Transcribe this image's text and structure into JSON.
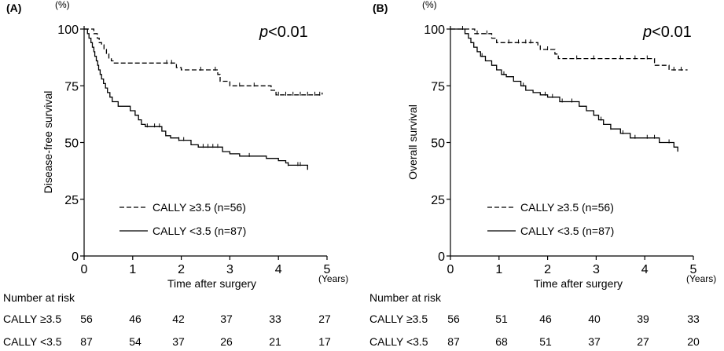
{
  "chart_data": [
    {
      "type": "line",
      "panel_label": "(A)",
      "ylabel": "Disease-free survival",
      "y_unit": "(%)",
      "xlabel": "Time after surgery",
      "x_unit": "(Years)",
      "xlim": [
        0,
        5
      ],
      "ylim": [
        0,
        100
      ],
      "x_ticks": [
        "0",
        "1",
        "2",
        "3",
        "4",
        "5"
      ],
      "y_ticks": [
        "0",
        "25",
        "50",
        "75",
        "100"
      ],
      "annotation_prefix": "p",
      "annotation_rest": "<0.01",
      "series": [
        {
          "name": "CALLY ≥3.5 (n=56)",
          "style": "dashed",
          "points": [
            [
              0,
              100
            ],
            [
              0.2,
              100
            ],
            [
              0.2,
              98
            ],
            [
              0.27,
              98
            ],
            [
              0.27,
              96
            ],
            [
              0.31,
              96
            ],
            [
              0.31,
              94
            ],
            [
              0.36,
              94
            ],
            [
              0.36,
              93
            ],
            [
              0.41,
              93
            ],
            [
              0.41,
              91
            ],
            [
              0.46,
              91
            ],
            [
              0.46,
              89
            ],
            [
              0.51,
              89
            ],
            [
              0.51,
              87
            ],
            [
              0.56,
              87
            ],
            [
              0.56,
              86
            ],
            [
              0.61,
              86
            ],
            [
              0.61,
              85
            ],
            [
              1.9,
              85
            ],
            [
              1.9,
              83
            ],
            [
              2.0,
              83
            ],
            [
              2.0,
              82
            ],
            [
              2.75,
              82
            ],
            [
              2.75,
              80
            ],
            [
              2.8,
              80
            ],
            [
              2.8,
              77
            ],
            [
              3.0,
              77
            ],
            [
              3.0,
              75
            ],
            [
              3.85,
              75
            ],
            [
              3.85,
              73
            ],
            [
              3.95,
              73
            ],
            [
              3.95,
              71
            ],
            [
              4.9,
              71
            ],
            [
              4.9,
              72
            ]
          ],
          "censor_x": [
            1.7,
            1.8,
            2.4,
            2.7,
            3.2,
            3.5,
            4.0,
            4.15,
            4.3,
            4.45,
            4.6,
            4.75,
            4.85
          ]
        },
        {
          "name": "CALLY <3.5 (n=87)",
          "style": "solid",
          "points": [
            [
              0,
              100
            ],
            [
              0.07,
              100
            ],
            [
              0.07,
              98
            ],
            [
              0.1,
              98
            ],
            [
              0.1,
              96
            ],
            [
              0.14,
              96
            ],
            [
              0.14,
              94
            ],
            [
              0.17,
              94
            ],
            [
              0.17,
              92
            ],
            [
              0.2,
              92
            ],
            [
              0.2,
              90
            ],
            [
              0.22,
              90
            ],
            [
              0.22,
              88
            ],
            [
              0.25,
              88
            ],
            [
              0.25,
              86
            ],
            [
              0.28,
              86
            ],
            [
              0.28,
              84
            ],
            [
              0.3,
              84
            ],
            [
              0.3,
              82
            ],
            [
              0.33,
              82
            ],
            [
              0.33,
              80
            ],
            [
              0.36,
              80
            ],
            [
              0.36,
              78
            ],
            [
              0.4,
              78
            ],
            [
              0.4,
              76
            ],
            [
              0.44,
              76
            ],
            [
              0.44,
              74
            ],
            [
              0.48,
              74
            ],
            [
              0.48,
              72
            ],
            [
              0.53,
              72
            ],
            [
              0.53,
              70
            ],
            [
              0.58,
              70
            ],
            [
              0.58,
              68
            ],
            [
              0.7,
              68
            ],
            [
              0.7,
              66
            ],
            [
              0.95,
              66
            ],
            [
              0.95,
              64
            ],
            [
              1.05,
              64
            ],
            [
              1.05,
              62
            ],
            [
              1.12,
              62
            ],
            [
              1.12,
              60
            ],
            [
              1.18,
              60
            ],
            [
              1.18,
              58
            ],
            [
              1.26,
              58
            ],
            [
              1.26,
              57
            ],
            [
              1.6,
              57
            ],
            [
              1.6,
              55
            ],
            [
              1.68,
              55
            ],
            [
              1.68,
              53
            ],
            [
              1.78,
              53
            ],
            [
              1.78,
              52
            ],
            [
              1.95,
              52
            ],
            [
              1.95,
              51
            ],
            [
              2.2,
              51
            ],
            [
              2.2,
              49
            ],
            [
              2.35,
              49
            ],
            [
              2.35,
              48
            ],
            [
              2.85,
              48
            ],
            [
              2.85,
              46
            ],
            [
              3.0,
              46
            ],
            [
              3.0,
              45
            ],
            [
              3.2,
              45
            ],
            [
              3.2,
              44
            ],
            [
              3.75,
              44
            ],
            [
              3.75,
              43
            ],
            [
              4.0,
              43
            ],
            [
              4.0,
              42
            ],
            [
              4.15,
              42
            ],
            [
              4.15,
              41
            ],
            [
              4.2,
              41
            ],
            [
              4.2,
              40
            ],
            [
              4.6,
              40
            ],
            [
              4.6,
              38
            ]
          ],
          "censor_x": [
            1.3,
            1.45,
            1.55,
            1.95,
            2.05,
            2.45,
            2.55,
            2.65,
            2.75,
            3.4,
            4.2,
            4.4,
            4.45
          ]
        }
      ],
      "risk_table": {
        "title": "Number at risk",
        "rows": [
          {
            "label": "CALLY ≥3.5",
            "values": [
              "56",
              "46",
              "42",
              "37",
              "33",
              "27"
            ]
          },
          {
            "label": "CALLY <3.5",
            "values": [
              "87",
              "54",
              "37",
              "26",
              "21",
              "17"
            ]
          }
        ]
      }
    },
    {
      "type": "line",
      "panel_label": "(B)",
      "ylabel": "Overall survival",
      "y_unit": "(%)",
      "xlabel": "Time after surgery",
      "x_unit": "(Years)",
      "xlim": [
        0,
        5
      ],
      "ylim": [
        0,
        100
      ],
      "x_ticks": [
        "0",
        "1",
        "2",
        "3",
        "4",
        "5"
      ],
      "y_ticks": [
        "0",
        "25",
        "50",
        "75",
        "100"
      ],
      "annotation_prefix": "p",
      "annotation_rest": "<0.01",
      "series": [
        {
          "name": "CALLY ≥3.5 (n=56)",
          "style": "dashed",
          "points": [
            [
              0,
              100
            ],
            [
              0.5,
              100
            ],
            [
              0.5,
              98
            ],
            [
              0.85,
              98
            ],
            [
              0.85,
              96
            ],
            [
              0.95,
              96
            ],
            [
              0.95,
              94
            ],
            [
              1.8,
              94
            ],
            [
              1.8,
              93
            ],
            [
              1.85,
              93
            ],
            [
              1.85,
              91
            ],
            [
              2.15,
              91
            ],
            [
              2.15,
              89
            ],
            [
              2.22,
              89
            ],
            [
              2.22,
              87
            ],
            [
              4.2,
              87
            ],
            [
              4.2,
              84
            ],
            [
              4.5,
              84
            ],
            [
              4.5,
              82
            ],
            [
              4.88,
              82
            ]
          ],
          "censor_x": [
            0.25,
            0.55,
            0.75,
            1.2,
            1.4,
            1.55,
            1.65,
            2.0,
            2.6,
            2.95,
            3.5,
            3.8,
            4.05,
            4.6,
            4.75
          ]
        },
        {
          "name": "CALLY <3.5 (n=87)",
          "style": "solid",
          "points": [
            [
              0,
              100
            ],
            [
              0.3,
              100
            ],
            [
              0.3,
              98
            ],
            [
              0.37,
              98
            ],
            [
              0.37,
              96
            ],
            [
              0.42,
              96
            ],
            [
              0.42,
              94
            ],
            [
              0.48,
              94
            ],
            [
              0.48,
              92
            ],
            [
              0.55,
              92
            ],
            [
              0.55,
              90
            ],
            [
              0.62,
              90
            ],
            [
              0.62,
              88
            ],
            [
              0.72,
              88
            ],
            [
              0.72,
              86
            ],
            [
              0.85,
              86
            ],
            [
              0.85,
              84
            ],
            [
              0.95,
              84
            ],
            [
              0.95,
              82
            ],
            [
              1.05,
              82
            ],
            [
              1.05,
              80
            ],
            [
              1.15,
              80
            ],
            [
              1.15,
              79
            ],
            [
              1.3,
              79
            ],
            [
              1.3,
              77
            ],
            [
              1.45,
              77
            ],
            [
              1.45,
              75
            ],
            [
              1.55,
              75
            ],
            [
              1.55,
              73
            ],
            [
              1.7,
              73
            ],
            [
              1.7,
              72
            ],
            [
              1.85,
              72
            ],
            [
              1.85,
              71
            ],
            [
              2.0,
              71
            ],
            [
              2.0,
              70
            ],
            [
              2.25,
              70
            ],
            [
              2.25,
              68
            ],
            [
              2.65,
              68
            ],
            [
              2.65,
              66
            ],
            [
              2.8,
              66
            ],
            [
              2.8,
              64
            ],
            [
              2.95,
              64
            ],
            [
              2.95,
              62
            ],
            [
              3.05,
              62
            ],
            [
              3.05,
              60
            ],
            [
              3.15,
              60
            ],
            [
              3.15,
              58
            ],
            [
              3.3,
              58
            ],
            [
              3.3,
              56
            ],
            [
              3.5,
              56
            ],
            [
              3.5,
              54
            ],
            [
              3.7,
              54
            ],
            [
              3.7,
              52
            ],
            [
              4.3,
              52
            ],
            [
              4.3,
              50
            ],
            [
              4.6,
              50
            ],
            [
              4.6,
              48
            ],
            [
              4.68,
              48
            ],
            [
              4.68,
              46
            ]
          ],
          "censor_x": [
            0.65,
            1.1,
            1.5,
            1.95,
            2.1,
            2.3,
            2.5,
            3.1,
            3.3,
            3.55,
            3.8,
            4.05,
            4.2,
            4.5
          ]
        }
      ],
      "risk_table": {
        "title": "Number at risk",
        "rows": [
          {
            "label": "CALLY ≥3.5",
            "values": [
              "56",
              "51",
              "46",
              "40",
              "39",
              "33"
            ]
          },
          {
            "label": "CALLY <3.5",
            "values": [
              "87",
              "68",
              "51",
              "37",
              "27",
              "20"
            ]
          }
        ]
      }
    }
  ]
}
